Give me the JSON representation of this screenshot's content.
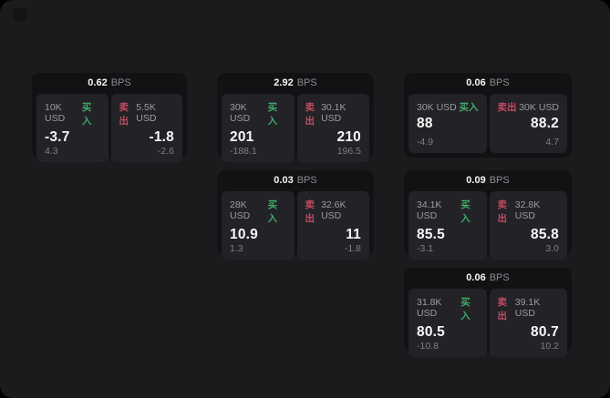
{
  "labels": {
    "buy": "买入",
    "sell": "卖出",
    "bps_suffix": "BPS"
  },
  "colors": {
    "buy_green": "#40a968",
    "sell_red": "#bf4b61",
    "container_bg": "#1b1b1d",
    "card_bg": "#121214",
    "panel_bg": "#232327"
  },
  "cards": [
    {
      "row": 1,
      "col": 1,
      "bps": "0.62",
      "buy": {
        "size": "10K USD",
        "price": "-3.7",
        "change": "4.3"
      },
      "sell": {
        "size": "5.5K USD",
        "price": "-1.8",
        "change": "-2.6"
      }
    },
    {
      "row": 1,
      "col": 2,
      "bps": "2.92",
      "buy": {
        "size": "30K USD",
        "price": "201",
        "change": "-188.1"
      },
      "sell": {
        "size": "30.1K USD",
        "price": "210",
        "change": "196.5"
      }
    },
    {
      "row": 1,
      "col": 3,
      "bps": "0.06",
      "buy": {
        "size": "30K USD",
        "price": "88",
        "change": "-4.9"
      },
      "sell": {
        "size": "30K USD",
        "price": "88.2",
        "change": "4.7"
      }
    },
    {
      "row": 2,
      "col": 2,
      "bps": "0.03",
      "buy": {
        "size": "28K USD",
        "price": "10.9",
        "change": "1.3"
      },
      "sell": {
        "size": "32.6K USD",
        "price": "11",
        "change": "-1.8"
      }
    },
    {
      "row": 2,
      "col": 3,
      "bps": "0.09",
      "buy": {
        "size": "34.1K USD",
        "price": "85.5",
        "change": "-3.1"
      },
      "sell": {
        "size": "32.8K USD",
        "price": "85.8",
        "change": "3.0"
      }
    },
    {
      "row": 3,
      "col": 3,
      "bps": "0.06",
      "buy": {
        "size": "31.8K USD",
        "price": "80.5",
        "change": "-10.8"
      },
      "sell": {
        "size": "39.1K USD",
        "price": "80.7",
        "change": "10.2"
      }
    }
  ]
}
